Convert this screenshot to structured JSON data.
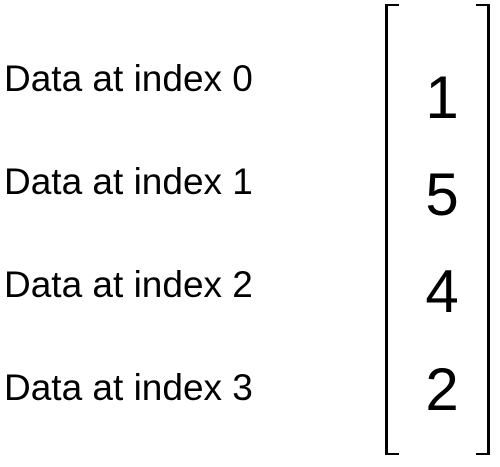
{
  "rows": [
    {
      "label": "Data at index 0",
      "value": "1"
    },
    {
      "label": "Data at index 1",
      "value": "5"
    },
    {
      "label": "Data at index 2",
      "value": "4"
    },
    {
      "label": "Data at index 3",
      "value": "2"
    }
  ]
}
